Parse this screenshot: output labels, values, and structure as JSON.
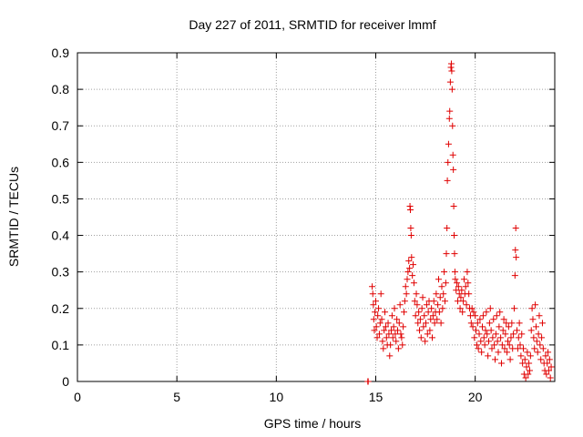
{
  "chart_data": {
    "type": "scatter",
    "title": "Day 227 of 2011, SRMTID for receiver lmmf",
    "xlabel": "GPS time / hours",
    "ylabel": "SRMTID / TECUs",
    "xlim": [
      0,
      24
    ],
    "ylim": [
      0,
      0.9
    ],
    "x_ticks": [
      0,
      5,
      10,
      15,
      20
    ],
    "x_tick_labels": [
      "0",
      "5",
      "10",
      "15",
      "20"
    ],
    "y_ticks": [
      0,
      0.1,
      0.2,
      0.3,
      0.4,
      0.5,
      0.6,
      0.7,
      0.8,
      0.9
    ],
    "y_tick_labels": [
      "0",
      "0.1",
      "0.2",
      "0.3",
      "0.4",
      "0.5",
      "0.6",
      "0.7",
      "0.8",
      "0.9"
    ],
    "grid": true,
    "series": [
      {
        "name": "SRMTID",
        "marker": "plus",
        "color": "#e00000",
        "points": [
          [
            14.6,
            0.0
          ],
          [
            14.62,
            0.0
          ],
          [
            14.82,
            0.26
          ],
          [
            14.85,
            0.24
          ],
          [
            14.88,
            0.21
          ],
          [
            14.9,
            0.17
          ],
          [
            14.93,
            0.14
          ],
          [
            14.96,
            0.19
          ],
          [
            15.0,
            0.22
          ],
          [
            15.03,
            0.15
          ],
          [
            15.07,
            0.12
          ],
          [
            15.1,
            0.18
          ],
          [
            15.14,
            0.2
          ],
          [
            15.18,
            0.13
          ],
          [
            15.22,
            0.16
          ],
          [
            15.26,
            0.24
          ],
          [
            15.3,
            0.17
          ],
          [
            15.34,
            0.11
          ],
          [
            15.38,
            0.09
          ],
          [
            15.42,
            0.14
          ],
          [
            15.46,
            0.19
          ],
          [
            15.5,
            0.15
          ],
          [
            15.54,
            0.12
          ],
          [
            15.58,
            0.1
          ],
          [
            15.62,
            0.16
          ],
          [
            15.66,
            0.13
          ],
          [
            15.7,
            0.07
          ],
          [
            15.74,
            0.1
          ],
          [
            15.78,
            0.14
          ],
          [
            15.82,
            0.18
          ],
          [
            15.86,
            0.12
          ],
          [
            15.9,
            0.15
          ],
          [
            15.94,
            0.2
          ],
          [
            15.98,
            0.13
          ],
          [
            16.02,
            0.11
          ],
          [
            16.06,
            0.17
          ],
          [
            16.1,
            0.14
          ],
          [
            16.14,
            0.09
          ],
          [
            16.18,
            0.16
          ],
          [
            16.22,
            0.21
          ],
          [
            16.26,
            0.13
          ],
          [
            16.3,
            0.12
          ],
          [
            16.34,
            0.1
          ],
          [
            16.38,
            0.15
          ],
          [
            16.42,
            0.19
          ],
          [
            16.46,
            0.22
          ],
          [
            16.5,
            0.26
          ],
          [
            16.54,
            0.24
          ],
          [
            16.58,
            0.28
          ],
          [
            16.62,
            0.3
          ],
          [
            16.66,
            0.33
          ],
          [
            16.7,
            0.31
          ],
          [
            16.72,
            0.48
          ],
          [
            16.74,
            0.47
          ],
          [
            16.76,
            0.42
          ],
          [
            16.78,
            0.4
          ],
          [
            16.8,
            0.34
          ],
          [
            16.84,
            0.29
          ],
          [
            16.88,
            0.32
          ],
          [
            16.92,
            0.27
          ],
          [
            16.96,
            0.22
          ],
          [
            17.0,
            0.18
          ],
          [
            17.04,
            0.24
          ],
          [
            17.08,
            0.21
          ],
          [
            17.12,
            0.16
          ],
          [
            17.16,
            0.19
          ],
          [
            17.2,
            0.14
          ],
          [
            17.24,
            0.17
          ],
          [
            17.28,
            0.12
          ],
          [
            17.32,
            0.2
          ],
          [
            17.36,
            0.23
          ],
          [
            17.4,
            0.15
          ],
          [
            17.44,
            0.18
          ],
          [
            17.48,
            0.11
          ],
          [
            17.52,
            0.16
          ],
          [
            17.56,
            0.21
          ],
          [
            17.6,
            0.13
          ],
          [
            17.64,
            0.19
          ],
          [
            17.68,
            0.22
          ],
          [
            17.72,
            0.14
          ],
          [
            17.76,
            0.17
          ],
          [
            17.8,
            0.2
          ],
          [
            17.84,
            0.12
          ],
          [
            17.88,
            0.18
          ],
          [
            17.92,
            0.22
          ],
          [
            17.96,
            0.16
          ],
          [
            18.0,
            0.19
          ],
          [
            18.04,
            0.24
          ],
          [
            18.08,
            0.17
          ],
          [
            18.12,
            0.21
          ],
          [
            18.16,
            0.28
          ],
          [
            18.2,
            0.19
          ],
          [
            18.24,
            0.23
          ],
          [
            18.28,
            0.16
          ],
          [
            18.32,
            0.26
          ],
          [
            18.36,
            0.2
          ],
          [
            18.4,
            0.24
          ],
          [
            18.44,
            0.3
          ],
          [
            18.48,
            0.22
          ],
          [
            18.52,
            0.27
          ],
          [
            18.55,
            0.35
          ],
          [
            18.58,
            0.42
          ],
          [
            18.6,
            0.55
          ],
          [
            18.63,
            0.6
          ],
          [
            18.66,
            0.65
          ],
          [
            18.7,
            0.72
          ],
          [
            18.72,
            0.74
          ],
          [
            18.75,
            0.82
          ],
          [
            18.78,
            0.86
          ],
          [
            18.8,
            0.87
          ],
          [
            18.82,
            0.85
          ],
          [
            18.84,
            0.8
          ],
          [
            18.86,
            0.7
          ],
          [
            18.88,
            0.62
          ],
          [
            18.9,
            0.58
          ],
          [
            18.92,
            0.48
          ],
          [
            18.94,
            0.4
          ],
          [
            18.96,
            0.35
          ],
          [
            18.98,
            0.3
          ],
          [
            19.0,
            0.28
          ],
          [
            19.04,
            0.25
          ],
          [
            19.08,
            0.27
          ],
          [
            19.12,
            0.22
          ],
          [
            19.16,
            0.26
          ],
          [
            19.2,
            0.24
          ],
          [
            19.24,
            0.2
          ],
          [
            19.28,
            0.23
          ],
          [
            19.32,
            0.25
          ],
          [
            19.36,
            0.19
          ],
          [
            19.4,
            0.22
          ],
          [
            19.44,
            0.28
          ],
          [
            19.48,
            0.24
          ],
          [
            19.52,
            0.26
          ],
          [
            19.56,
            0.21
          ],
          [
            19.6,
            0.3
          ],
          [
            19.64,
            0.27
          ],
          [
            19.68,
            0.24
          ],
          [
            19.72,
            0.2
          ],
          [
            19.76,
            0.18
          ],
          [
            19.8,
            0.16
          ],
          [
            19.84,
            0.2
          ],
          [
            19.88,
            0.15
          ],
          [
            19.92,
            0.19
          ],
          [
            19.96,
            0.12
          ],
          [
            20.0,
            0.18
          ],
          [
            20.04,
            0.14
          ],
          [
            20.08,
            0.1
          ],
          [
            20.12,
            0.16
          ],
          [
            20.16,
            0.09
          ],
          [
            20.2,
            0.13
          ],
          [
            20.24,
            0.17
          ],
          [
            20.28,
            0.11
          ],
          [
            20.32,
            0.08
          ],
          [
            20.36,
            0.15
          ],
          [
            20.4,
            0.18
          ],
          [
            20.44,
            0.12
          ],
          [
            20.48,
            0.1
          ],
          [
            20.52,
            0.14
          ],
          [
            20.56,
            0.19
          ],
          [
            20.6,
            0.13
          ],
          [
            20.64,
            0.07
          ],
          [
            20.68,
            0.11
          ],
          [
            20.72,
            0.16
          ],
          [
            20.76,
            0.2
          ],
          [
            20.8,
            0.14
          ],
          [
            20.84,
            0.09
          ],
          [
            20.88,
            0.12
          ],
          [
            20.92,
            0.17
          ],
          [
            20.96,
            0.1
          ],
          [
            21.0,
            0.06
          ],
          [
            21.04,
            0.13
          ],
          [
            21.08,
            0.18
          ],
          [
            21.12,
            0.11
          ],
          [
            21.16,
            0.08
          ],
          [
            21.2,
            0.15
          ],
          [
            21.24,
            0.19
          ],
          [
            21.28,
            0.12
          ],
          [
            21.32,
            0.05
          ],
          [
            21.36,
            0.1
          ],
          [
            21.4,
            0.14
          ],
          [
            21.44,
            0.17
          ],
          [
            21.48,
            0.09
          ],
          [
            21.52,
            0.13
          ],
          [
            21.56,
            0.16
          ],
          [
            21.6,
            0.08
          ],
          [
            21.64,
            0.11
          ],
          [
            21.68,
            0.15
          ],
          [
            21.72,
            0.1
          ],
          [
            21.76,
            0.06
          ],
          [
            21.8,
            0.12
          ],
          [
            21.84,
            0.16
          ],
          [
            21.88,
            0.09
          ],
          [
            21.92,
            0.13
          ],
          [
            21.96,
            0.2
          ],
          [
            22.0,
            0.29
          ],
          [
            22.02,
            0.36
          ],
          [
            22.04,
            0.42
          ],
          [
            22.06,
            0.34
          ],
          [
            22.1,
            0.14
          ],
          [
            22.14,
            0.09
          ],
          [
            22.18,
            0.12
          ],
          [
            22.22,
            0.16
          ],
          [
            22.26,
            0.1
          ],
          [
            22.3,
            0.07
          ],
          [
            22.34,
            0.13
          ],
          [
            22.38,
            0.05
          ],
          [
            22.42,
            0.09
          ],
          [
            22.46,
            0.02
          ],
          [
            22.5,
            0.06
          ],
          [
            22.54,
            0.01
          ],
          [
            22.58,
            0.04
          ],
          [
            22.62,
            0.08
          ],
          [
            22.66,
            0.02
          ],
          [
            22.7,
            0.05
          ],
          [
            22.74,
            0.03
          ],
          [
            22.78,
            0.07
          ],
          [
            22.82,
            0.14
          ],
          [
            22.86,
            0.2
          ],
          [
            22.9,
            0.17
          ],
          [
            22.94,
            0.12
          ],
          [
            22.98,
            0.09
          ],
          [
            23.02,
            0.21
          ],
          [
            23.06,
            0.15
          ],
          [
            23.1,
            0.11
          ],
          [
            23.14,
            0.08
          ],
          [
            23.18,
            0.13
          ],
          [
            23.22,
            0.18
          ],
          [
            23.26,
            0.1
          ],
          [
            23.3,
            0.06
          ],
          [
            23.34,
            0.12
          ],
          [
            23.38,
            0.16
          ],
          [
            23.42,
            0.09
          ],
          [
            23.46,
            0.05
          ],
          [
            23.5,
            0.03
          ],
          [
            23.54,
            0.07
          ],
          [
            23.58,
            0.02
          ],
          [
            23.62,
            0.05
          ],
          [
            23.66,
            0.08
          ],
          [
            23.7,
            0.03
          ],
          [
            23.74,
            0.06
          ],
          [
            23.78,
            0.01
          ],
          [
            23.82,
            0.04
          ]
        ]
      }
    ]
  }
}
